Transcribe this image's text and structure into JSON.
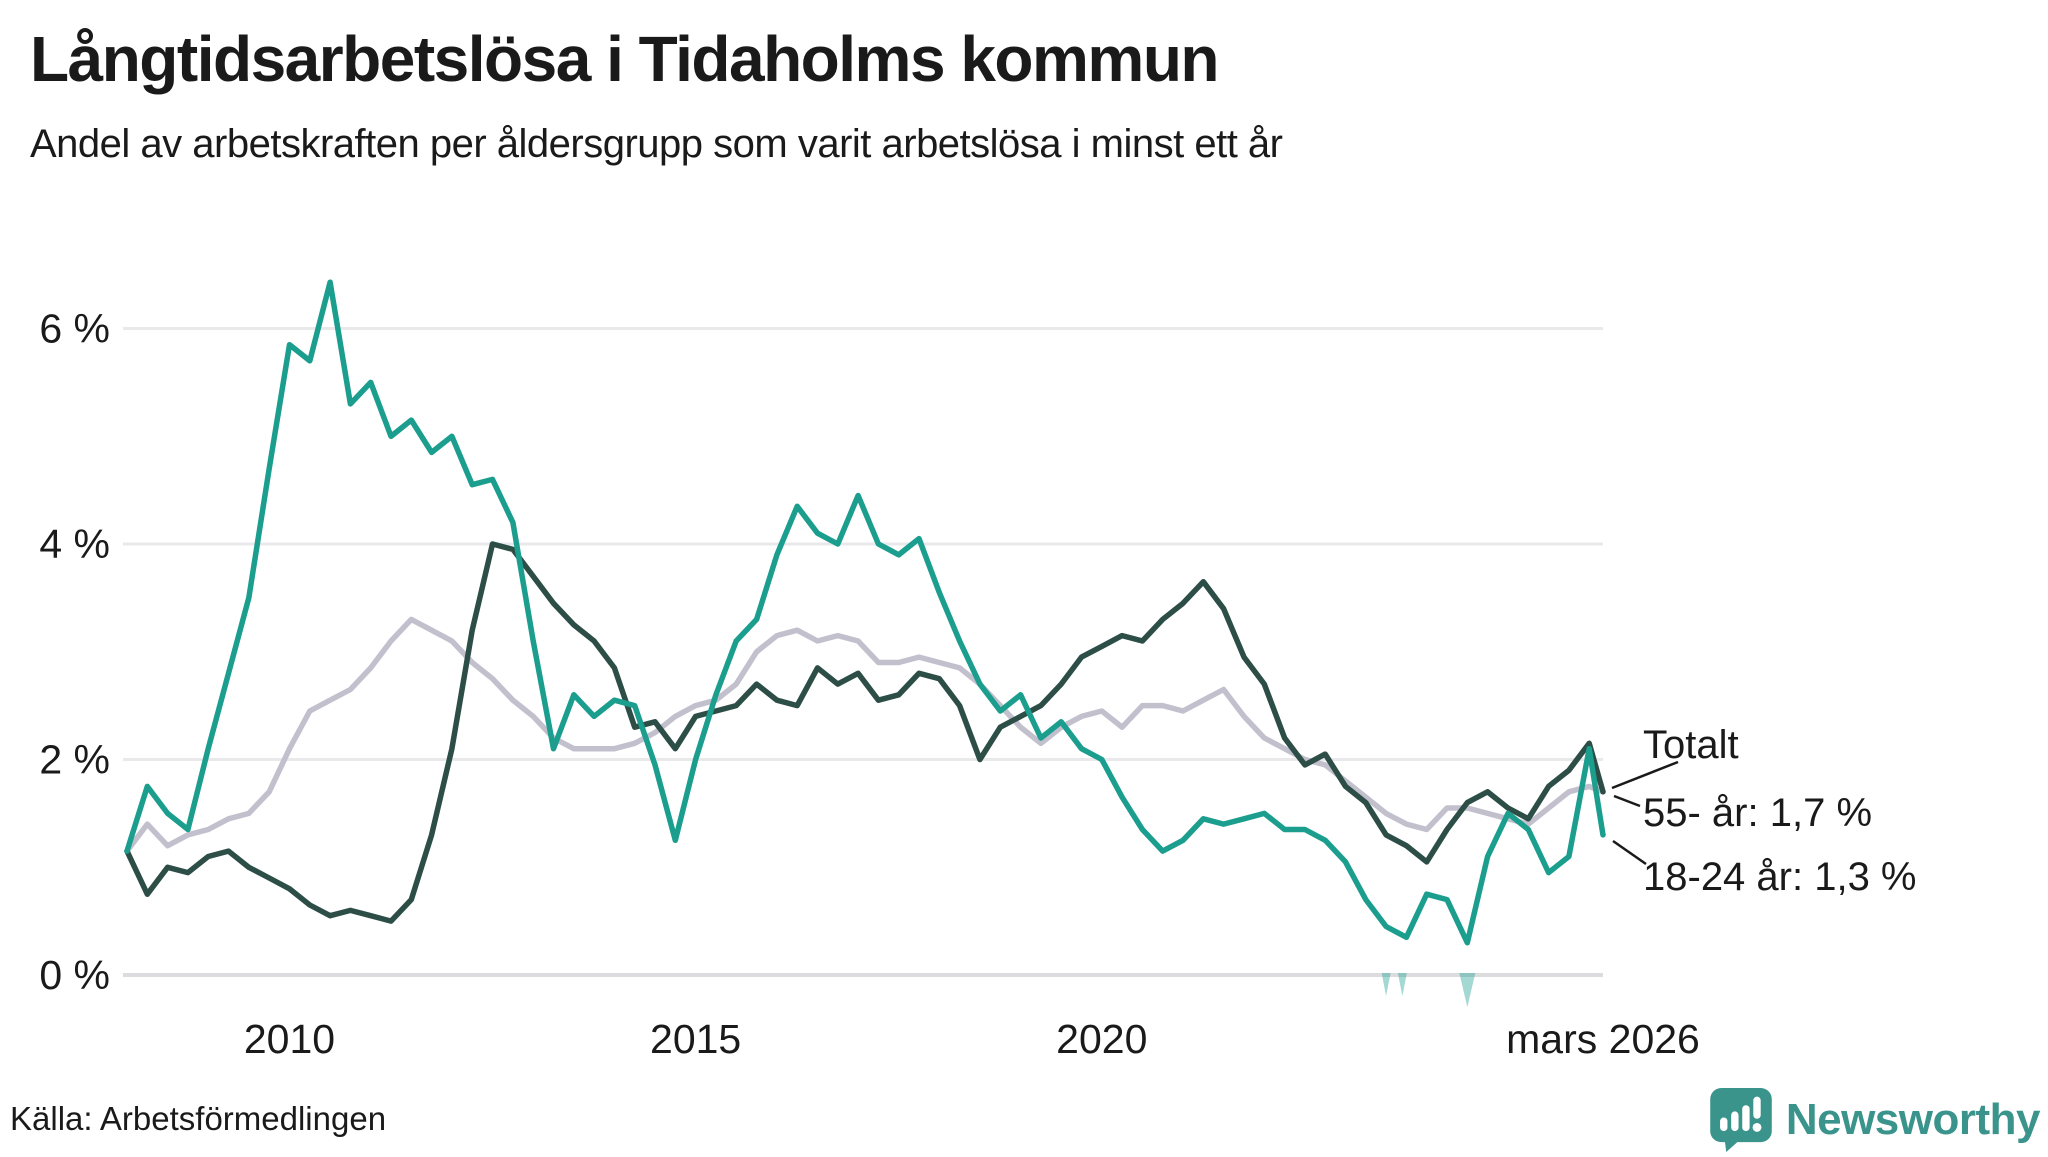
{
  "header": {
    "title": "Långtidsarbetslösa i Tidaholms kommun",
    "subtitle": "Andel av arbetskraften per åldersgrupp som varit arbetslösa i minst ett år"
  },
  "annotations": {
    "total_label": "Totalt",
    "older_label": "55- år: 1,7 %",
    "youth_label": "18-24 år: 1,3 %"
  },
  "footer": {
    "source": "Källa: Arbetsförmedlingen",
    "brand": "Newsworthy"
  },
  "colors": {
    "youth_line": "#1b9e8e",
    "older_line": "#2d4e47",
    "total_line": "#c3c0ce",
    "grid": "#e9e9ec",
    "zero_axis": "#dcdcdf",
    "text": "#1a1a1a",
    "leader": "#1a1a1a",
    "brand_teal": "#3a948c",
    "underflow_teal": "rgba(27,158,142,0.40)"
  },
  "chart_data": {
    "type": "line",
    "title": "Långtidsarbetslösa i Tidaholms kommun",
    "subtitle": "Andel av arbetskraften per åldersgrupp som varit arbetslösa i minst ett år",
    "source": "Arbetsförmedlingen",
    "unit": "% av arbetskraften",
    "grid": true,
    "legend_position": "right-annotations",
    "x_domain": [
      2008.0,
      2026.17
    ],
    "ylim": [
      0,
      6.6
    ],
    "x_ticks": [
      {
        "t": 2010.0,
        "label": "2010"
      },
      {
        "t": 2015.0,
        "label": "2015"
      },
      {
        "t": 2020.0,
        "label": "2020"
      },
      {
        "t": 2026.17,
        "label": "mars 2026"
      }
    ],
    "y_ticks": [
      {
        "v": 0,
        "label": "0 %"
      },
      {
        "v": 2,
        "label": "2 %"
      },
      {
        "v": 4,
        "label": "4 %"
      },
      {
        "v": 6,
        "label": "6 %"
      }
    ],
    "x": [
      2008.0,
      2008.25,
      2008.5,
      2008.75,
      2009.0,
      2009.25,
      2009.5,
      2009.75,
      2010.0,
      2010.25,
      2010.5,
      2010.75,
      2011.0,
      2011.25,
      2011.5,
      2011.75,
      2012.0,
      2012.25,
      2012.5,
      2012.75,
      2013.0,
      2013.25,
      2013.5,
      2013.75,
      2014.0,
      2014.25,
      2014.5,
      2014.75,
      2015.0,
      2015.25,
      2015.5,
      2015.75,
      2016.0,
      2016.25,
      2016.5,
      2016.75,
      2017.0,
      2017.25,
      2017.5,
      2017.75,
      2018.0,
      2018.25,
      2018.5,
      2018.75,
      2019.0,
      2019.25,
      2019.5,
      2019.75,
      2020.0,
      2020.25,
      2020.5,
      2020.75,
      2021.0,
      2021.25,
      2021.5,
      2021.75,
      2022.0,
      2022.25,
      2022.5,
      2022.75,
      2023.0,
      2023.25,
      2023.5,
      2023.75,
      2024.0,
      2024.25,
      2024.5,
      2024.75,
      2025.0,
      2025.25,
      2025.5,
      2025.75,
      2026.0,
      2026.17
    ],
    "series": [
      {
        "name": "Totalt",
        "color": "#c3c0ce",
        "final_value_pct": 1.7,
        "values": [
          1.15,
          1.4,
          1.2,
          1.3,
          1.35,
          1.45,
          1.5,
          1.7,
          2.1,
          2.45,
          2.55,
          2.65,
          2.85,
          3.1,
          3.3,
          3.2,
          3.1,
          2.9,
          2.75,
          2.55,
          2.4,
          2.2,
          2.1,
          2.1,
          2.1,
          2.15,
          2.25,
          2.4,
          2.5,
          2.55,
          2.7,
          3.0,
          3.15,
          3.2,
          3.1,
          3.15,
          3.1,
          2.9,
          2.9,
          2.95,
          2.9,
          2.85,
          2.7,
          2.5,
          2.3,
          2.15,
          2.3,
          2.4,
          2.45,
          2.3,
          2.5,
          2.5,
          2.45,
          2.55,
          2.65,
          2.4,
          2.2,
          2.1,
          2.0,
          1.95,
          1.8,
          1.65,
          1.5,
          1.4,
          1.35,
          1.55,
          1.55,
          1.5,
          1.45,
          1.4,
          1.55,
          1.7,
          1.75,
          1.7
        ]
      },
      {
        "name": "55- år",
        "color": "#2d4e47",
        "final_value_pct": 1.7,
        "values": [
          1.15,
          0.75,
          1.0,
          0.95,
          1.1,
          1.15,
          1.0,
          0.9,
          0.8,
          0.65,
          0.55,
          0.6,
          0.55,
          0.5,
          0.7,
          1.3,
          2.1,
          3.2,
          4.0,
          3.95,
          3.7,
          3.45,
          3.25,
          3.1,
          2.85,
          2.3,
          2.35,
          2.1,
          2.4,
          2.45,
          2.5,
          2.7,
          2.55,
          2.5,
          2.85,
          2.7,
          2.8,
          2.55,
          2.6,
          2.8,
          2.75,
          2.5,
          2.0,
          2.3,
          2.4,
          2.5,
          2.7,
          2.95,
          3.05,
          3.15,
          3.1,
          3.3,
          3.45,
          3.65,
          3.4,
          2.95,
          2.7,
          2.2,
          1.95,
          2.05,
          1.75,
          1.6,
          1.3,
          1.2,
          1.05,
          1.35,
          1.6,
          1.7,
          1.55,
          1.45,
          1.75,
          1.9,
          2.15,
          1.7
        ]
      },
      {
        "name": "18-24 år",
        "color": "#1b9e8e",
        "final_value_pct": 1.3,
        "values": [
          1.15,
          1.75,
          1.5,
          1.35,
          2.1,
          2.8,
          3.5,
          4.7,
          5.85,
          5.7,
          6.43,
          5.3,
          5.5,
          5.0,
          5.15,
          4.85,
          5.0,
          4.55,
          4.6,
          4.2,
          3.1,
          2.1,
          2.6,
          2.4,
          2.55,
          2.5,
          1.95,
          1.25,
          2.0,
          2.6,
          3.1,
          3.3,
          3.9,
          4.35,
          4.1,
          4.0,
          4.45,
          4.0,
          3.9,
          4.05,
          3.55,
          3.1,
          2.7,
          2.45,
          2.6,
          2.2,
          2.35,
          2.1,
          2.0,
          1.65,
          1.35,
          1.15,
          1.25,
          1.45,
          1.4,
          1.45,
          1.5,
          1.35,
          1.35,
          1.25,
          1.05,
          0.7,
          0.45,
          0.35,
          0.75,
          0.7,
          0.3,
          1.1,
          1.5,
          1.35,
          0.95,
          1.1,
          2.1,
          1.3
        ]
      }
    ],
    "underflow_marks_t": [
      2023.5,
      2023.7,
      2024.5
    ]
  }
}
